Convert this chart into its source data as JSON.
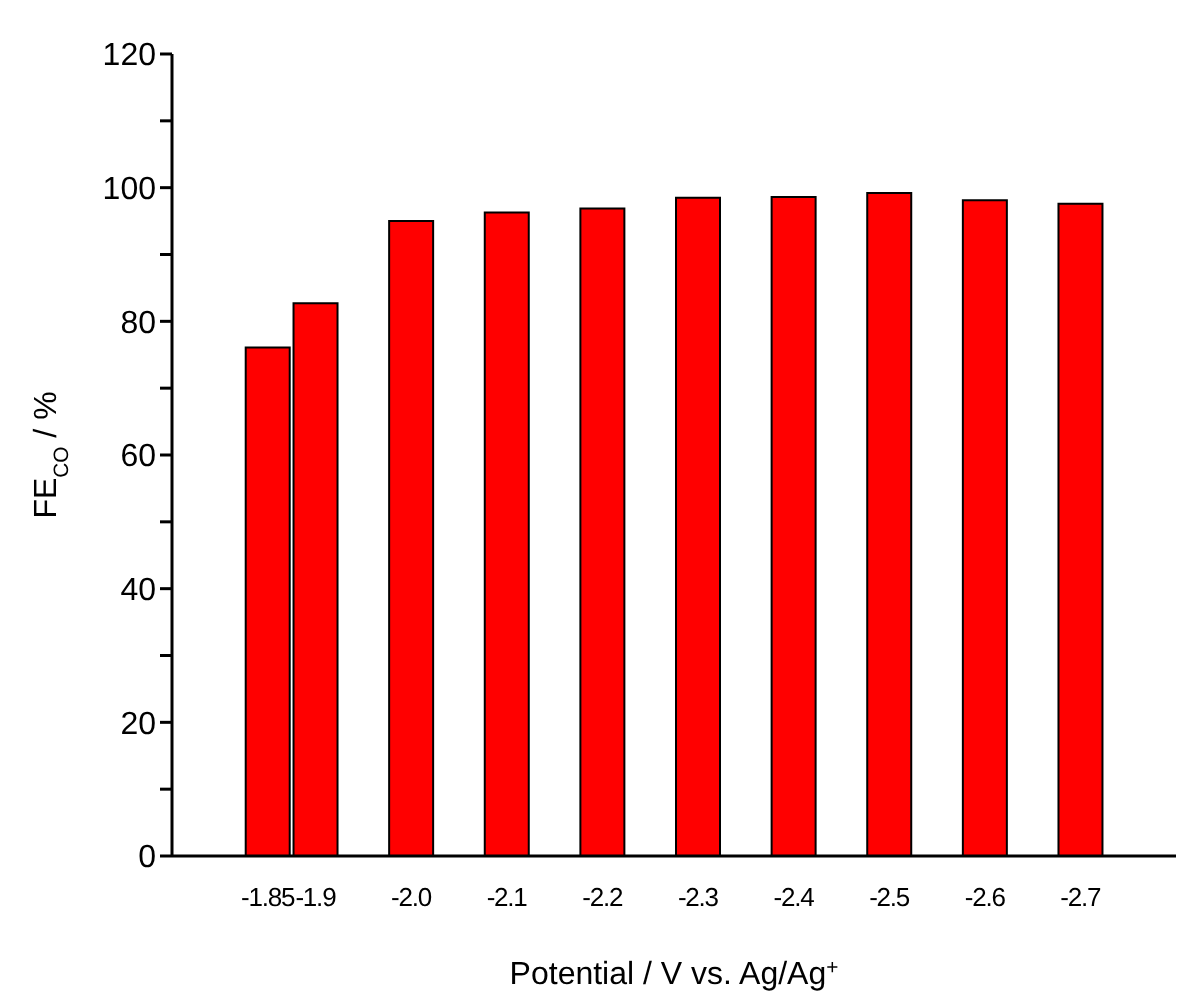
{
  "chart_data": {
    "type": "bar",
    "xlabel": "Potential / V vs. Ag/Ag$^{+}$",
    "ylabel": "FE$_{CO}$ / %",
    "x": [
      -1.85,
      -1.9,
      -2.0,
      -2.1,
      -2.2,
      -2.3,
      -2.4,
      -2.5,
      -2.6,
      -2.7
    ],
    "values": [
      76.1,
      82.7,
      95.0,
      96.3,
      96.9,
      98.5,
      98.6,
      99.2,
      98.1,
      97.6
    ],
    "color": "#ff0000",
    "xlim": [
      -1.75,
      -2.8
    ],
    "xticks": [
      -1.85,
      -1.9,
      {
        "value": -2.0,
        "label": "-2.0"
      },
      -2.1,
      -2.2,
      -2.3,
      -2.4,
      -2.5,
      -2.6,
      -2.7
    ],
    "ylim": [
      0,
      120
    ],
    "yticks": [
      0,
      {
        "value": 10,
        "label": null
      },
      20,
      {
        "value": 30,
        "label": null
      },
      40,
      {
        "value": 50,
        "label": null
      },
      60,
      {
        "value": 70,
        "label": null
      },
      80,
      {
        "value": 90,
        "label": null
      },
      100,
      {
        "value": 110,
        "label": null
      },
      120
    ],
    "grid": false,
    "legend": false
  }
}
